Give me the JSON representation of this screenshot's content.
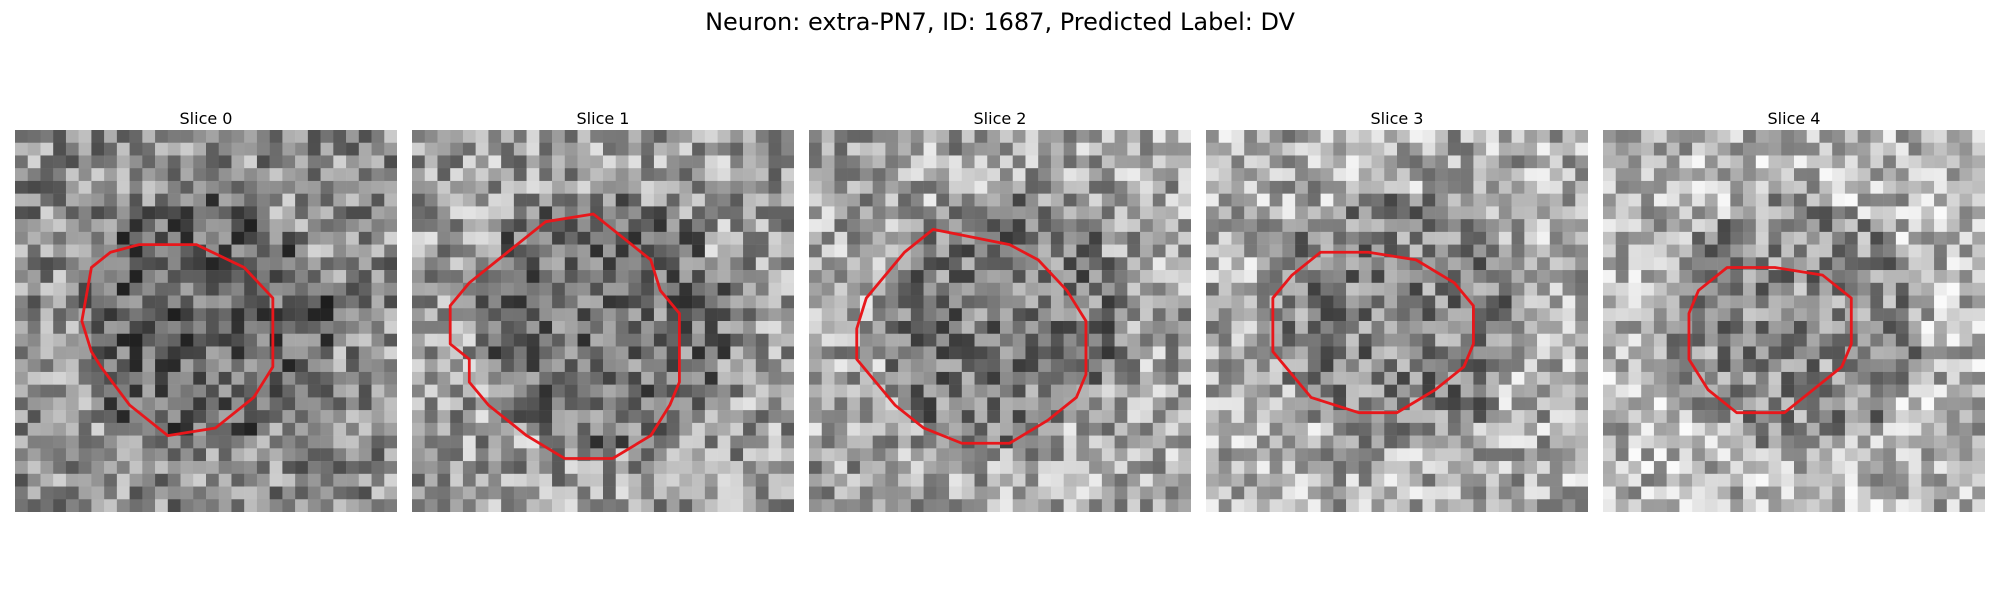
{
  "figure": {
    "title": "Neuron: extra-PN7, ID: 1687, Predicted Label: DV"
  },
  "contour_color": "#e8171b",
  "slices": [
    {
      "title": "Slice 0",
      "seed": 11,
      "bias": -0.04,
      "contour": [
        [
          10,
          16
        ],
        [
          8,
          18
        ],
        [
          7,
          25
        ],
        [
          8,
          29
        ],
        [
          9,
          31
        ],
        [
          12,
          36
        ],
        [
          16,
          40
        ],
        [
          21,
          39
        ],
        [
          25,
          35
        ],
        [
          27,
          31
        ],
        [
          27,
          22
        ],
        [
          24,
          18
        ],
        [
          19,
          15
        ],
        [
          13,
          15
        ]
      ]
    },
    {
      "title": "Slice 1",
      "seed": 23,
      "bias": 0.02,
      "contour": [
        [
          14,
          12
        ],
        [
          9,
          17
        ],
        [
          6,
          20
        ],
        [
          4,
          23
        ],
        [
          4,
          28
        ],
        [
          6,
          30
        ],
        [
          6,
          33
        ],
        [
          8,
          36
        ],
        [
          12,
          40
        ],
        [
          16,
          43
        ],
        [
          21,
          43
        ],
        [
          25,
          40
        ],
        [
          27,
          36
        ],
        [
          28,
          33
        ],
        [
          28,
          24
        ],
        [
          26,
          21
        ],
        [
          25,
          17
        ],
        [
          22,
          14
        ],
        [
          19,
          11
        ]
      ]
    },
    {
      "title": "Slice 2",
      "seed": 37,
      "bias": 0.05,
      "contour": [
        [
          13,
          13
        ],
        [
          10,
          16
        ],
        [
          8,
          19
        ],
        [
          6,
          22
        ],
        [
          5,
          26
        ],
        [
          5,
          30
        ],
        [
          7,
          33
        ],
        [
          9,
          36
        ],
        [
          12,
          39
        ],
        [
          16,
          41
        ],
        [
          21,
          41
        ],
        [
          25,
          38
        ],
        [
          28,
          35
        ],
        [
          29,
          32
        ],
        [
          29,
          25
        ],
        [
          27,
          21
        ],
        [
          24,
          17
        ],
        [
          21,
          15
        ],
        [
          17,
          14
        ]
      ]
    },
    {
      "title": "Slice 3",
      "seed": 41,
      "bias": 0.08,
      "contour": [
        [
          12,
          16
        ],
        [
          9,
          19
        ],
        [
          7,
          22
        ],
        [
          7,
          29
        ],
        [
          9,
          32
        ],
        [
          11,
          35
        ],
        [
          16,
          37
        ],
        [
          20,
          37
        ],
        [
          24,
          34
        ],
        [
          27,
          31
        ],
        [
          28,
          28
        ],
        [
          28,
          23
        ],
        [
          26,
          20
        ],
        [
          22,
          17
        ],
        [
          17,
          16
        ]
      ]
    },
    {
      "title": "Slice 4",
      "seed": 53,
      "bias": 0.12,
      "contour": [
        [
          13,
          18
        ],
        [
          10,
          21
        ],
        [
          9,
          24
        ],
        [
          9,
          30
        ],
        [
          11,
          34
        ],
        [
          14,
          37
        ],
        [
          19,
          37
        ],
        [
          22,
          34
        ],
        [
          25,
          31
        ],
        [
          26,
          28
        ],
        [
          26,
          22
        ],
        [
          23,
          19
        ],
        [
          18,
          18
        ]
      ]
    }
  ]
}
